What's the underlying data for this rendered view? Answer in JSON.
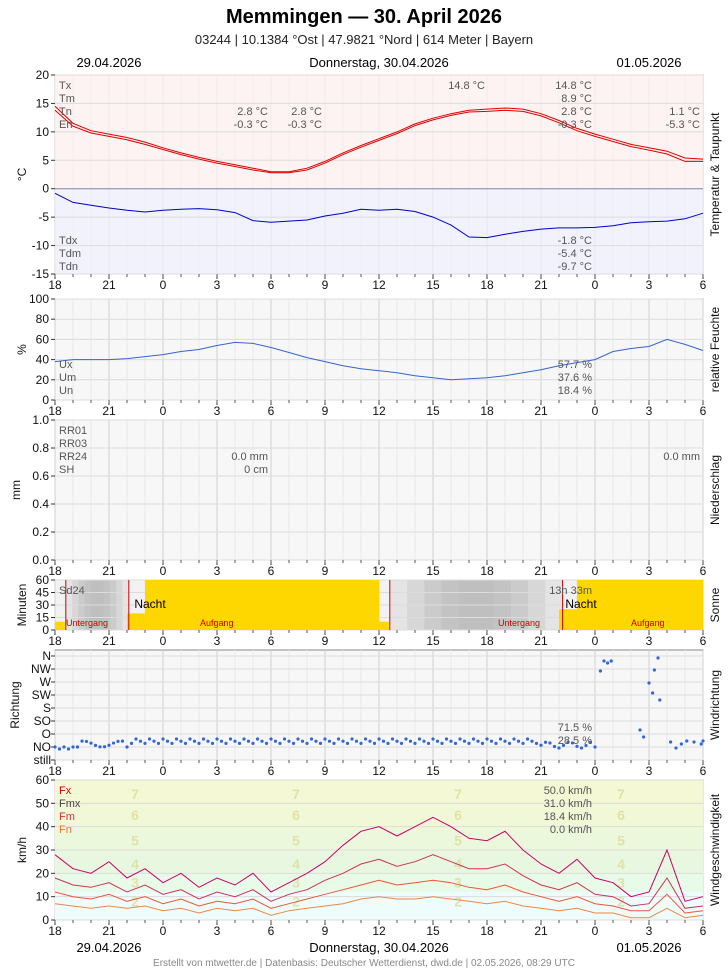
{
  "header": {
    "title": "Memmingen  —  30. April 2026",
    "subtitle": "03244  |  10.1384 °Ost  |  47.9821 °Nord  |  614 Meter  |  Bayern"
  },
  "dates": {
    "left": "29.04.2026",
    "center": "Donnerstag, 30.04.2026",
    "right": "01.05.2026"
  },
  "footer": "Erstellt von mtwetter.de | Datenbasis: Deutscher Wetterdienst, dwd.de | 02.05.2026, 08:29 UTC",
  "x_ticks": [
    "18",
    "21",
    "0",
    "3",
    "6",
    "9",
    "12",
    "15",
    "18",
    "21",
    "0",
    "3",
    "6"
  ],
  "colors": {
    "tmax": "#e00000",
    "tdew": "#0000cc",
    "humidity": "#3366cc",
    "sun": "#ffd700",
    "night": "#bbbbbb",
    "wind_dir": "#3366dd",
    "fx": "#cc0066",
    "fmx": "#cc3355",
    "fm": "#ee5533",
    "fn": "#ee8844"
  },
  "chart_data": [
    {
      "type": "line",
      "name": "temperature",
      "ylabel": "°C",
      "right_label": "Temperatur & Taupunkt",
      "ylim": [
        -15,
        20
      ],
      "y_ticks": [
        20,
        15,
        10,
        5,
        0,
        -5,
        -10,
        -15
      ],
      "legend_top": [
        "Tx",
        "Tm",
        "Tn",
        "En"
      ],
      "legend_bottom": [
        "Tdx",
        "Tdm",
        "Tdn"
      ],
      "day1_stats": {
        "tn": "2.8 °C",
        "en": "-0.3 °C",
        "tn2": "2.8 °C",
        "en2": "-0.3 °C",
        "tx": "14.8 °C"
      },
      "day2_stats": {
        "tx": "14.8 °C",
        "tm": "8.9 °C",
        "tn": "2.8 °C",
        "en": "-0.3 °C",
        "tdx": "-1.8 °C",
        "tdm": "-5.4 °C",
        "tdn": "-9.7 °C"
      },
      "day3_stats": {
        "tn": "1.1 °C",
        "en": "-5.3 °C"
      },
      "x_hours": [
        0,
        1,
        2,
        3,
        4,
        5,
        6,
        7,
        8,
        9,
        10,
        11,
        12,
        13,
        14,
        15,
        16,
        17,
        18,
        19,
        20,
        21,
        22,
        23,
        24,
        25,
        26,
        27,
        28,
        29,
        30,
        31,
        32,
        33,
        34,
        35,
        36
      ],
      "series": [
        {
          "values": [
            14.5,
            11.5,
            10.2,
            9.6,
            9.0,
            8.2,
            7.2,
            6.3,
            5.5,
            4.8,
            4.2,
            3.6,
            3.0,
            3.0,
            3.6,
            4.8,
            6.3,
            7.6,
            8.8,
            10.0,
            11.4,
            12.4,
            13.2,
            13.8,
            14.0,
            14.2,
            14.0,
            13.2,
            12.0,
            10.6,
            9.6,
            8.7,
            7.8,
            7.2,
            6.6,
            5.4,
            5.2
          ]
        },
        {
          "values": [
            13.8,
            11.0,
            9.8,
            9.2,
            8.6,
            7.8,
            6.9,
            6.0,
            5.2,
            4.5,
            3.9,
            3.3,
            2.8,
            2.8,
            3.3,
            4.5,
            6.0,
            7.3,
            8.5,
            9.7,
            11.1,
            12.1,
            12.9,
            13.5,
            13.6,
            13.8,
            13.6,
            12.8,
            11.6,
            10.2,
            9.2,
            8.3,
            7.4,
            6.8,
            6.1,
            4.8,
            4.8
          ]
        },
        {
          "values": [
            -0.8,
            -2.4,
            -2.9,
            -3.4,
            -3.8,
            -4.1,
            -3.8,
            -3.6,
            -3.5,
            -3.7,
            -4.2,
            -5.6,
            -5.9,
            -5.7,
            -5.5,
            -4.8,
            -4.3,
            -3.6,
            -3.8,
            -3.6,
            -4.0,
            -5.0,
            -6.4,
            -8.5,
            -8.6,
            -8.0,
            -7.5,
            -7.1,
            -6.9,
            -6.9,
            -6.8,
            -6.5,
            -6.0,
            -5.8,
            -5.7,
            -5.3,
            -4.3
          ]
        }
      ]
    },
    {
      "type": "line",
      "name": "humidity",
      "ylabel": "%",
      "right_label": "relative Feuchte",
      "ylim": [
        0,
        100
      ],
      "y_ticks": [
        100,
        80,
        60,
        40,
        20,
        0
      ],
      "legend": [
        "Ux",
        "Um",
        "Un"
      ],
      "stats": {
        "ux": "57.7 %",
        "um": "37.6 %",
        "un": "18.4 %"
      },
      "x_hours": [
        0,
        1,
        2,
        3,
        4,
        5,
        6,
        7,
        8,
        9,
        10,
        11,
        12,
        13,
        14,
        15,
        16,
        17,
        18,
        19,
        20,
        21,
        22,
        23,
        24,
        25,
        26,
        27,
        28,
        29,
        30,
        31,
        32,
        33,
        34,
        35,
        36
      ],
      "values": [
        38,
        40,
        40,
        40,
        41,
        43,
        45,
        48,
        50,
        54,
        57,
        56,
        52,
        47,
        42,
        38,
        34,
        31,
        29,
        27,
        24,
        22,
        20,
        21,
        22,
        24,
        27,
        30,
        34,
        37,
        40,
        48,
        51,
        53,
        60,
        55,
        49
      ]
    },
    {
      "type": "bar",
      "name": "precipitation",
      "ylabel": "mm",
      "right_label": "Niederschlag",
      "ylim": [
        0,
        1.0
      ],
      "y_ticks": [
        "1.0",
        "0.8",
        "0.6",
        "0.4",
        "0.2",
        "0.0"
      ],
      "legend": [
        "RR01",
        "RR03",
        "RR24",
        "SH"
      ],
      "stats_day1": {
        "rr24": "0.0 mm",
        "sh": "0 cm"
      },
      "stats_day2": {
        "rr24": "0.0 mm"
      },
      "values": []
    },
    {
      "type": "bar",
      "name": "sunshine",
      "ylabel": "Minuten",
      "right_label": "Sonne",
      "ylim": [
        0,
        60
      ],
      "y_ticks": [
        60,
        45,
        30,
        15,
        0
      ],
      "legend": [
        "Sd24"
      ],
      "total": "13h 33m",
      "night_label": "Nacht",
      "sunset_label": "Untergang",
      "sunrise_label": "Aufgang",
      "bars_hours": [
        0,
        4,
        5,
        18,
        28,
        29
      ],
      "bars_values": [
        10,
        20,
        60,
        10,
        25,
        60
      ],
      "bars_ends": [
        0.55,
        5,
        18,
        18.55,
        29,
        36
      ]
    },
    {
      "type": "scatter",
      "name": "wind_direction",
      "ylabel": "Richtung",
      "right_label": "Windrichtung",
      "categories": [
        "N",
        "NW",
        "W",
        "SW",
        "S",
        "SO",
        "O",
        "NO",
        "still"
      ],
      "stats": {
        "a": "71.5 %",
        "b": "28.5 %"
      }
    },
    {
      "type": "line",
      "name": "wind_speed",
      "ylabel": "km/h",
      "right_label": "Windgeschwindigkeit",
      "ylim": [
        0,
        60
      ],
      "y_ticks": [
        60,
        50,
        40,
        30,
        20,
        10,
        0
      ],
      "beaufort": [
        "7",
        "6",
        "5",
        "4",
        "3",
        "2"
      ],
      "legend": [
        "Fx",
        "Fmx",
        "Fm",
        "Fn"
      ],
      "stats": {
        "fx": "50.0 km/h",
        "fmx": "31.0 km/h",
        "fm": "18.4 km/h",
        "fn": "0.0 km/h"
      },
      "x_hours": [
        0,
        1,
        2,
        3,
        4,
        5,
        6,
        7,
        8,
        9,
        10,
        11,
        12,
        13,
        14,
        15,
        16,
        17,
        18,
        19,
        20,
        21,
        22,
        23,
        24,
        25,
        26,
        27,
        28,
        29,
        30,
        31,
        32,
        33,
        34,
        35,
        36
      ],
      "series": [
        {
          "values": [
            28,
            22,
            20,
            25,
            18,
            22,
            16,
            20,
            14,
            18,
            15,
            20,
            12,
            16,
            20,
            25,
            32,
            38,
            40,
            36,
            40,
            44,
            40,
            35,
            34,
            38,
            30,
            24,
            20,
            26,
            18,
            16,
            10,
            12,
            30,
            8,
            10
          ]
        },
        {
          "values": [
            18,
            15,
            14,
            16,
            12,
            15,
            11,
            13,
            9,
            12,
            10,
            13,
            8,
            11,
            13,
            17,
            20,
            24,
            26,
            23,
            25,
            28,
            25,
            22,
            22,
            24,
            19,
            15,
            13,
            16,
            11,
            10,
            6,
            7,
            18,
            5,
            6
          ]
        },
        {
          "values": [
            12,
            10,
            9,
            11,
            8,
            10,
            7,
            9,
            6,
            8,
            7,
            9,
            5,
            7,
            9,
            11,
            13,
            15,
            17,
            15,
            16,
            17,
            16,
            14,
            13,
            15,
            12,
            10,
            8,
            10,
            7,
            6,
            4,
            4,
            11,
            3,
            4
          ]
        },
        {
          "values": [
            7,
            6,
            5,
            6,
            5,
            6,
            4,
            5,
            3,
            5,
            4,
            5,
            2,
            4,
            5,
            6,
            7,
            9,
            10,
            9,
            9,
            10,
            9,
            8,
            7,
            8,
            6,
            5,
            4,
            5,
            3,
            3,
            1,
            1,
            5,
            1,
            2
          ]
        }
      ]
    }
  ]
}
